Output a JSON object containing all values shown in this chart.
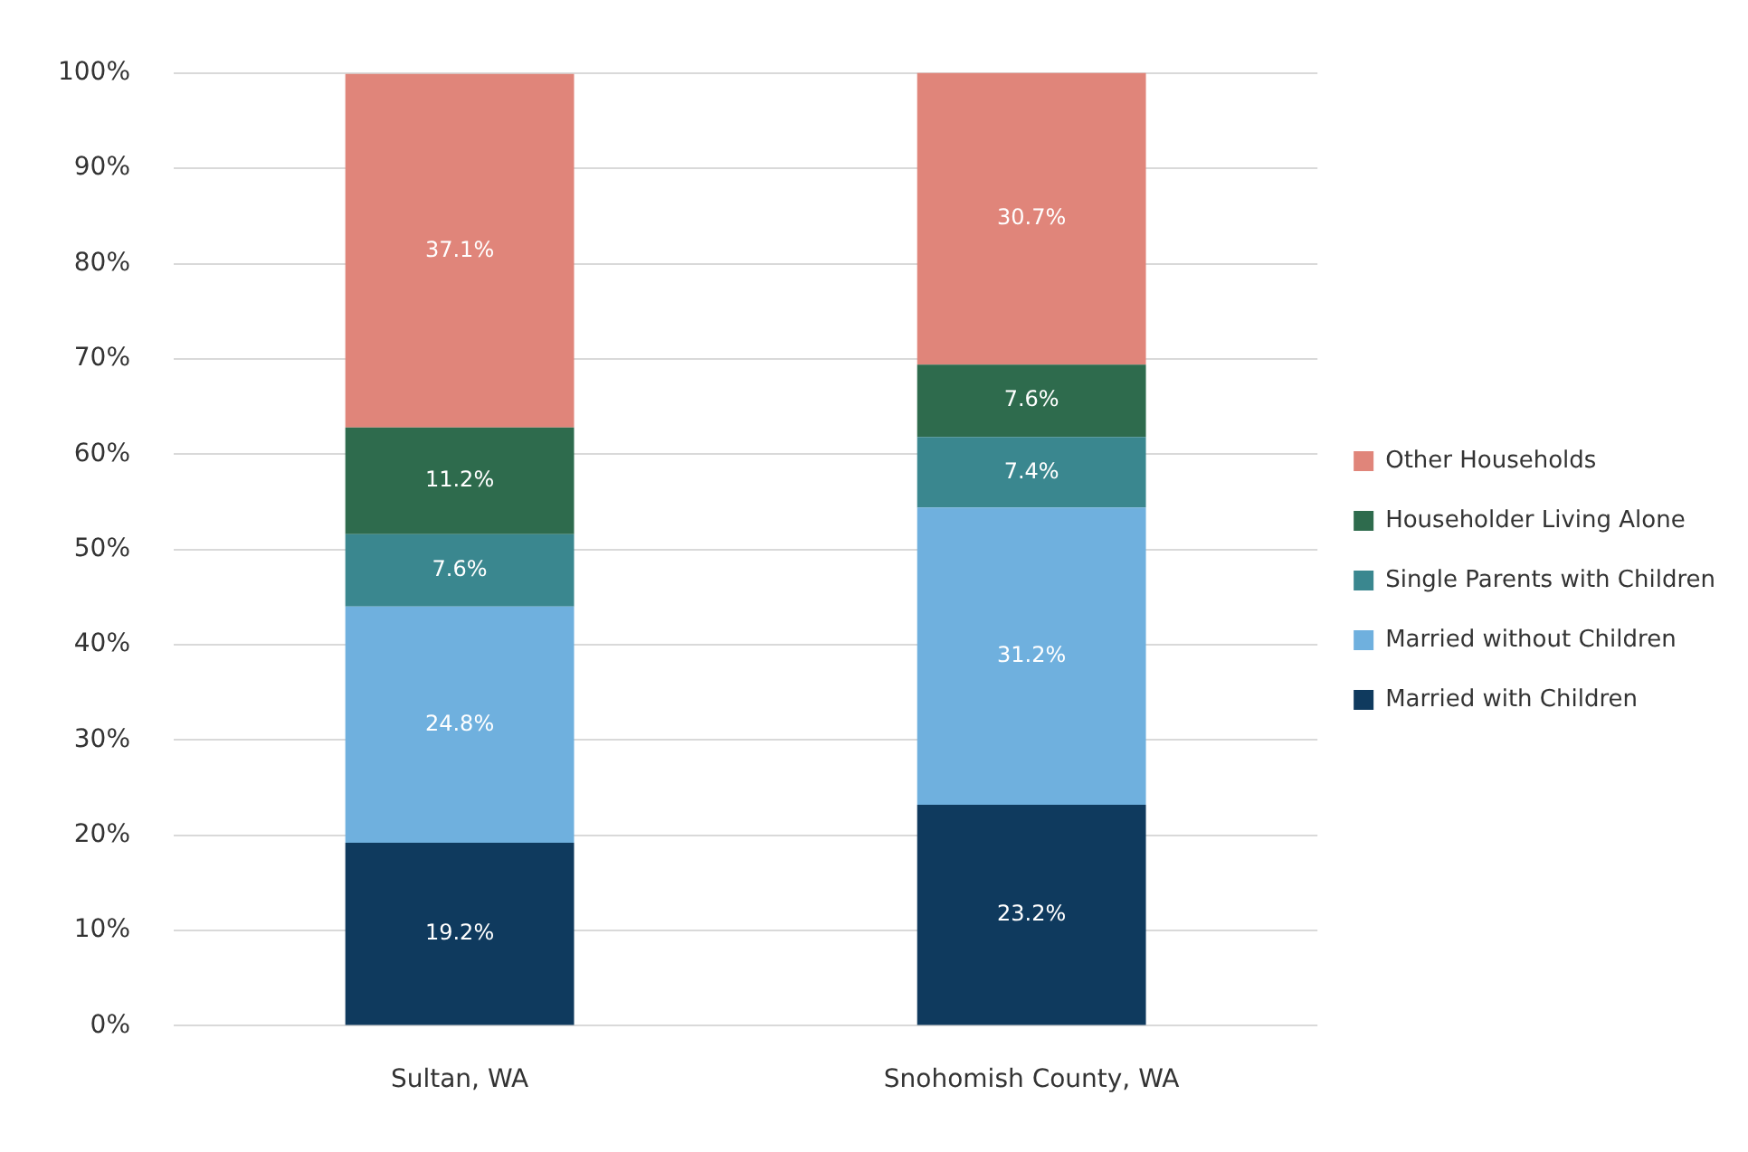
{
  "chart_data": {
    "type": "bar",
    "stacked": true,
    "categories": [
      "Sultan, WA",
      "Snohomish County, WA"
    ],
    "series": [
      {
        "name": "Married with Children",
        "color": "#0f3a5e",
        "values": [
          19.2,
          23.2
        ],
        "value_labels": [
          "19.2%",
          "23.2%"
        ]
      },
      {
        "name": "Married without Children",
        "color": "#6fb0de",
        "values": [
          24.8,
          31.2
        ],
        "value_labels": [
          "24.8%",
          "31.2%"
        ]
      },
      {
        "name": "Single Parents with Children",
        "color": "#3a878f",
        "values": [
          7.6,
          7.4
        ],
        "value_labels": [
          "7.6%",
          "7.4%"
        ]
      },
      {
        "name": "Householder Living Alone",
        "color": "#2e6b4d",
        "values": [
          11.2,
          7.6
        ],
        "value_labels": [
          "11.2%",
          "7.6%"
        ]
      },
      {
        "name": "Other Households",
        "color": "#e0857a",
        "values": [
          37.1,
          30.7
        ],
        "value_labels": [
          "37.1%",
          "30.7%"
        ]
      }
    ],
    "ylim": [
      0,
      100
    ],
    "yticks": [
      {
        "value": 0,
        "label": "0%"
      },
      {
        "value": 10,
        "label": "10%"
      },
      {
        "value": 20,
        "label": "20%"
      },
      {
        "value": 30,
        "label": "30%"
      },
      {
        "value": 40,
        "label": "40%"
      },
      {
        "value": 50,
        "label": "50%"
      },
      {
        "value": 60,
        "label": "60%"
      },
      {
        "value": 70,
        "label": "70%"
      },
      {
        "value": 80,
        "label": "80%"
      },
      {
        "value": 90,
        "label": "90%"
      },
      {
        "value": 100,
        "label": "100%"
      }
    ],
    "grid": "y",
    "legend": "right"
  }
}
